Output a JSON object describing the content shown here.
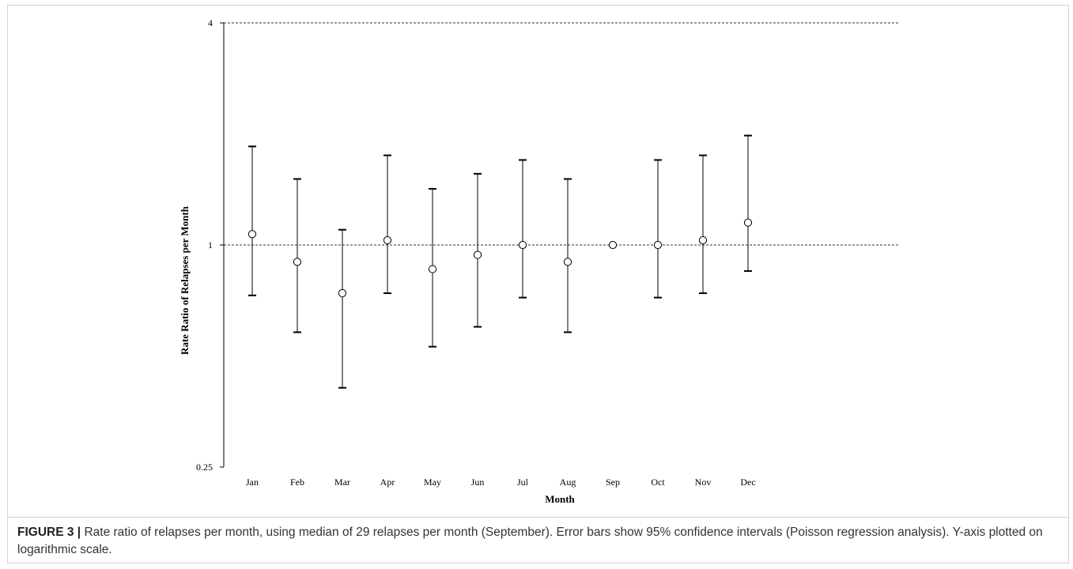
{
  "figure": {
    "label": "FIGURE 3 |",
    "caption": " Rate ratio of relapses per month, using median of 29 relapses per month (September). Error bars show 95% confidence intervals (Poisson regression analysis). Y-axis plotted on logarithmic scale."
  },
  "chart_data": {
    "type": "scatter",
    "title": "",
    "xlabel": "Month",
    "ylabel": "Rate Ratio of Relapses per Month",
    "y_scale": "log",
    "ylim": [
      0.25,
      4
    ],
    "yticks": [
      0.25,
      1,
      4
    ],
    "ytick_labels": [
      "0.25",
      "1",
      "4"
    ],
    "reference_lines": [
      1,
      4
    ],
    "categories": [
      "Jan",
      "Feb",
      "Mar",
      "Apr",
      "May",
      "Jun",
      "Jul",
      "Aug",
      "Sep",
      "Oct",
      "Nov",
      "Dec"
    ],
    "values": [
      1.07,
      0.9,
      0.74,
      1.03,
      0.86,
      0.94,
      1.0,
      0.9,
      1.0,
      1.0,
      1.03,
      1.15
    ],
    "ci_lower": [
      0.73,
      0.58,
      0.41,
      0.74,
      0.53,
      0.6,
      0.72,
      0.58,
      null,
      0.72,
      0.74,
      0.85
    ],
    "ci_upper": [
      1.85,
      1.51,
      1.1,
      1.75,
      1.42,
      1.56,
      1.7,
      1.51,
      null,
      1.7,
      1.75,
      1.98
    ],
    "grid": false,
    "marker": "open-circle",
    "colors": {
      "line": "#000000",
      "marker_fill": "#ffffff",
      "reference": "#333333"
    }
  }
}
